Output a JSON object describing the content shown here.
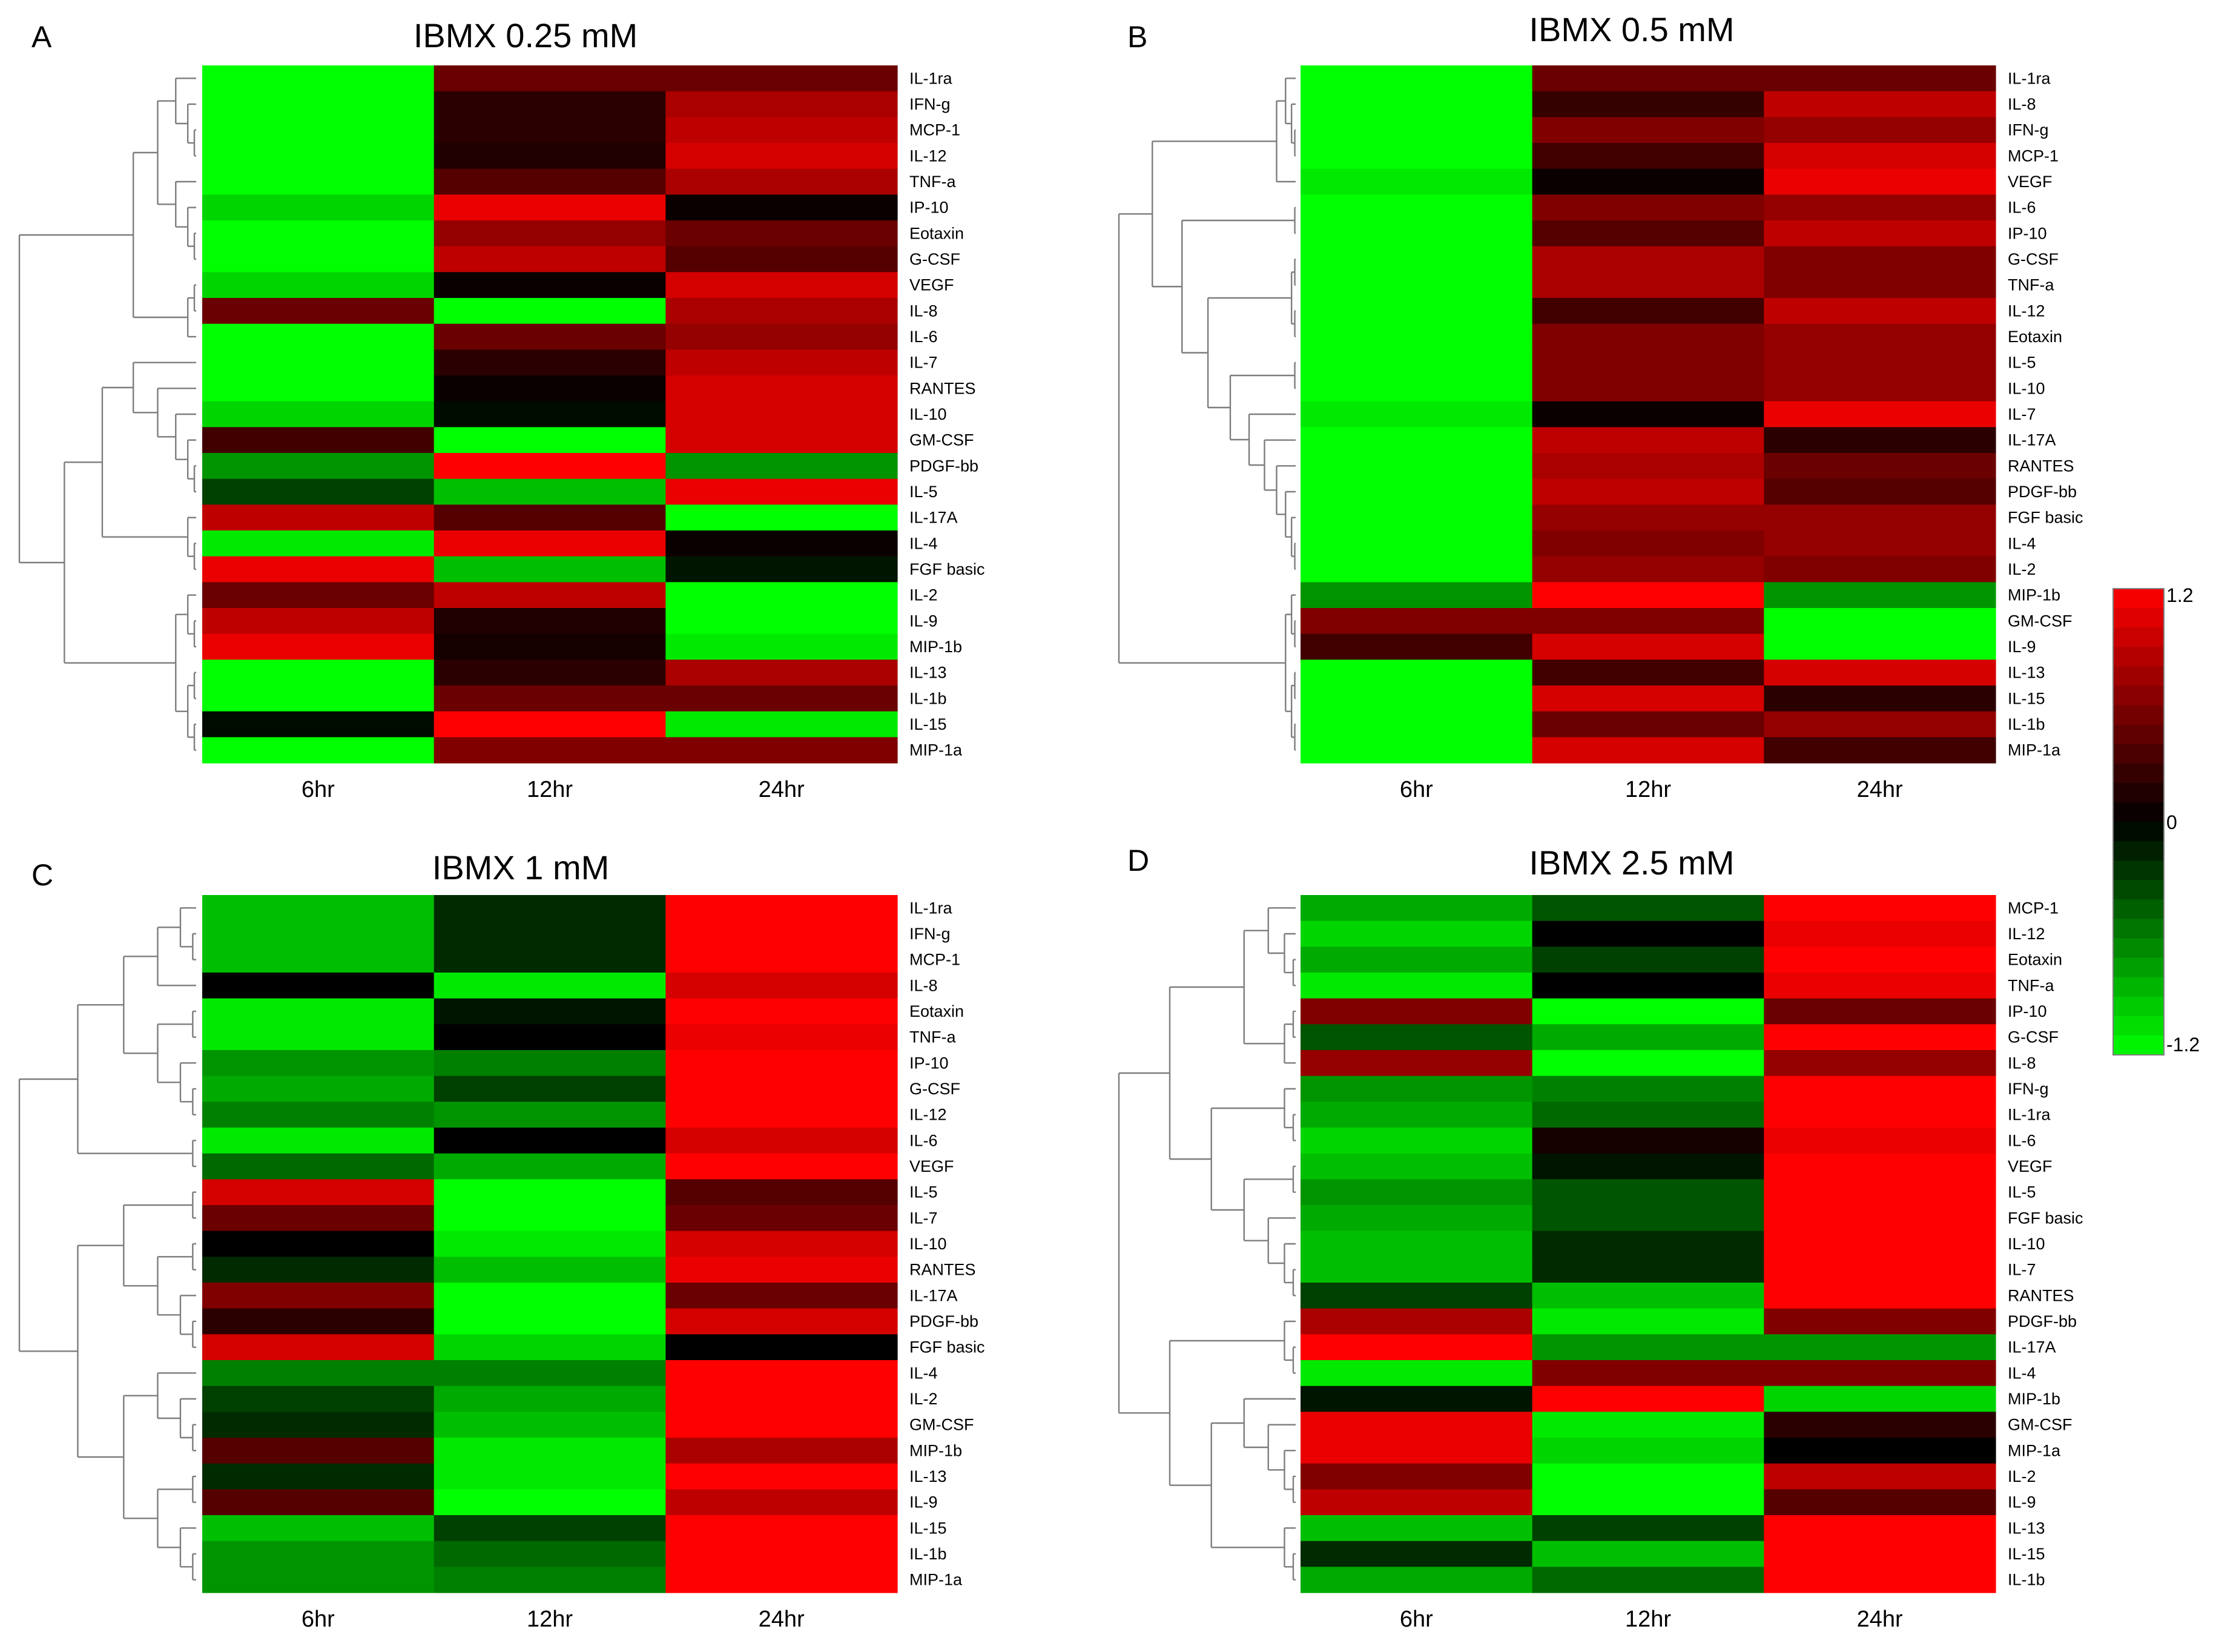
{
  "colors": {
    "high": "#ff0000",
    "mid": "#000000",
    "low": "#00ff00"
  },
  "color_scale": {
    "max_label": "1.2",
    "mid_label": "0",
    "min_label": "-1.2",
    "min": -1.2,
    "max": 1.2,
    "steps": 24
  },
  "chart_data": [
    {
      "type": "heatmap",
      "panel": "A",
      "title": "IBMX 0.25 mM",
      "columns": [
        "6hr",
        "12hr",
        "24hr"
      ],
      "rows": [
        "IL-1ra",
        "IFN-g",
        "MCP-1",
        "IL-12",
        "TNF-a",
        "IP-10",
        "Eotaxin",
        "G-CSF",
        "VEGF",
        "IL-8",
        "IL-6",
        "IL-7",
        "RANTES",
        "IL-10",
        "GM-CSF",
        "PDGF-bb",
        "IL-5",
        "IL-17A",
        "IL-4",
        "FGF basic",
        "IL-2",
        "IL-9",
        "MIP-1b",
        "IL-13",
        "IL-1b",
        "IL-15",
        "MIP-1a"
      ],
      "values": [
        [
          -1.2,
          0.5,
          0.5
        ],
        [
          -1.2,
          0.2,
          0.8
        ],
        [
          -1.2,
          0.2,
          0.9
        ],
        [
          -1.2,
          0.15,
          1.0
        ],
        [
          -1.2,
          0.4,
          0.8
        ],
        [
          -1.0,
          1.1,
          0.05
        ],
        [
          -1.2,
          0.7,
          0.5
        ],
        [
          -1.2,
          0.9,
          0.4
        ],
        [
          -1.0,
          0.05,
          1.0
        ],
        [
          0.5,
          -1.2,
          0.8
        ],
        [
          -1.2,
          0.5,
          0.7
        ],
        [
          -1.2,
          0.2,
          0.9
        ],
        [
          -1.2,
          0.05,
          1.0
        ],
        [
          -1.0,
          -0.05,
          1.0
        ],
        [
          0.3,
          -1.2,
          1.0
        ],
        [
          -0.7,
          1.2,
          -0.7
        ],
        [
          -0.3,
          -0.9,
          1.1
        ],
        [
          0.9,
          0.4,
          -1.2
        ],
        [
          -1.1,
          1.1,
          0.05
        ],
        [
          1.1,
          -0.9,
          -0.1
        ],
        [
          0.5,
          0.9,
          -1.2
        ],
        [
          0.9,
          0.15,
          -1.2
        ],
        [
          1.1,
          0.1,
          -1.1
        ],
        [
          -1.2,
          0.2,
          0.8
        ],
        [
          -1.2,
          0.5,
          0.5
        ],
        [
          -0.05,
          1.2,
          -1.1
        ],
        [
          -1.2,
          0.6,
          0.6
        ]
      ],
      "tree": [
        "(",
        "(",
        "(",
        "(",
        "(",
        "IL-1ra",
        ")",
        "(",
        "IFN-g",
        "(",
        "MCP-1",
        "IL-12",
        ")",
        ")",
        ")",
        "(",
        "TNF-a",
        "(",
        "IP-10",
        "(",
        "Eotaxin",
        "G-CSF",
        ")",
        ")",
        ")",
        ")",
        "(",
        "(",
        "VEGF",
        "IL-8",
        ")",
        "IL-6",
        ")",
        ")",
        "(",
        "(",
        "(",
        "IL-7",
        "(",
        "RANTES",
        "(",
        "IL-10",
        "(",
        "GM-CSF",
        "(",
        "PDGF-bb",
        "IL-5",
        ")",
        ")",
        ")",
        ")",
        ")",
        "(",
        "IL-17A",
        "(",
        "IL-4",
        "FGF basic",
        ")",
        ")",
        ")",
        "(",
        "(",
        "IL-2",
        "(",
        "IL-9",
        "MIP-1b",
        ")",
        ")",
        "(",
        "(",
        "IL-13",
        "IL-1b",
        ")",
        "(",
        "IL-15",
        "MIP-1a",
        ")",
        ")",
        ")",
        ")",
        ")"
      ]
    },
    {
      "type": "heatmap",
      "panel": "B",
      "title": "IBMX 0.5 mM",
      "columns": [
        "6hr",
        "12hr",
        "24hr"
      ],
      "rows": [
        "IL-1ra",
        "IL-8",
        "IFN-g",
        "MCP-1",
        "VEGF",
        "IL-6",
        "IP-10",
        "G-CSF",
        "TNF-a",
        "IL-12",
        "Eotaxin",
        "IL-5",
        "IL-10",
        "IL-7",
        "IL-17A",
        "RANTES",
        "PDGF-bb",
        "FGF basic",
        "IL-4",
        "IL-2",
        "MIP-1b",
        "GM-CSF",
        "IL-9",
        "IL-13",
        "IL-15",
        "IL-1b",
        "MIP-1a"
      ],
      "values": [
        [
          -1.2,
          0.5,
          0.5
        ],
        [
          -1.2,
          0.25,
          0.9
        ],
        [
          -1.2,
          0.6,
          0.7
        ],
        [
          -1.2,
          0.3,
          1.0
        ],
        [
          -1.1,
          0.05,
          1.1
        ],
        [
          -1.2,
          0.6,
          0.7
        ],
        [
          -1.2,
          0.4,
          0.9
        ],
        [
          -1.2,
          0.8,
          0.6
        ],
        [
          -1.2,
          0.8,
          0.6
        ],
        [
          -1.2,
          0.3,
          0.9
        ],
        [
          -1.2,
          0.6,
          0.7
        ],
        [
          -1.2,
          0.6,
          0.7
        ],
        [
          -1.2,
          0.6,
          0.7
        ],
        [
          -1.1,
          0.05,
          1.1
        ],
        [
          -1.2,
          0.9,
          0.2
        ],
        [
          -1.2,
          0.8,
          0.5
        ],
        [
          -1.2,
          0.9,
          0.4
        ],
        [
          -1.2,
          0.7,
          0.7
        ],
        [
          -1.2,
          0.6,
          0.7
        ],
        [
          -1.2,
          0.7,
          0.6
        ],
        [
          -0.7,
          1.2,
          -0.7
        ],
        [
          0.6,
          0.6,
          -1.2
        ],
        [
          0.3,
          1.0,
          -1.2
        ],
        [
          -1.2,
          0.3,
          1.0
        ],
        [
          -1.2,
          1.0,
          0.2
        ],
        [
          -1.2,
          0.5,
          0.7
        ],
        [
          -1.2,
          1.0,
          0.3
        ]
      ],
      "tree": [
        "(",
        "(",
        "(",
        "(",
        "IL-1ra",
        "(",
        "IL-8",
        "(",
        "IFN-g",
        "MCP-1",
        ")",
        ")",
        ")",
        "VEGF",
        ")",
        "(",
        "(",
        "IL-6",
        "IP-10",
        ")",
        "(",
        "(",
        "(",
        "G-CSF",
        "TNF-a",
        ")",
        "(",
        "IL-12",
        "Eotaxin",
        ")",
        ")",
        "(",
        "(",
        "IL-5",
        "IL-10",
        ")",
        "(",
        "IL-7",
        "(",
        "IL-17A",
        "(",
        "RANTES",
        "(",
        "PDGF-bb",
        "(",
        "FGF basic",
        "(",
        "IL-4",
        "IL-2",
        ")",
        ")",
        ")",
        ")",
        ")",
        ")",
        ")",
        ")",
        ")",
        ")",
        "(",
        "(",
        "MIP-1b",
        "(",
        "GM-CSF",
        "IL-9",
        ")",
        ")",
        "(",
        "(",
        "IL-13",
        "IL-15",
        ")",
        "(",
        "IL-1b",
        "MIP-1a",
        ")",
        ")",
        ")",
        ")"
      ]
    },
    {
      "type": "heatmap",
      "panel": "C",
      "title": "IBMX 1 mM",
      "columns": [
        "6hr",
        "12hr",
        "24hr"
      ],
      "rows": [
        "IL-1ra",
        "IFN-g",
        "MCP-1",
        "IL-8",
        "Eotaxin",
        "TNF-a",
        "IP-10",
        "G-CSF",
        "IL-12",
        "IL-6",
        "VEGF",
        "IL-5",
        "IL-7",
        "IL-10",
        "RANTES",
        "IL-17A",
        "PDGF-bb",
        "FGF basic",
        "IL-4",
        "IL-2",
        "GM-CSF",
        "MIP-1b",
        "IL-13",
        "IL-9",
        "IL-15",
        "IL-1b",
        "MIP-1a"
      ],
      "values": [
        [
          -0.9,
          -0.2,
          1.2
        ],
        [
          -0.9,
          -0.2,
          1.2
        ],
        [
          -0.9,
          -0.2,
          1.2
        ],
        [
          0.0,
          -1.1,
          1.0
        ],
        [
          -1.1,
          -0.1,
          1.2
        ],
        [
          -1.1,
          0.0,
          1.1
        ],
        [
          -0.7,
          -0.6,
          1.2
        ],
        [
          -0.8,
          -0.3,
          1.2
        ],
        [
          -0.6,
          -0.7,
          1.2
        ],
        [
          -1.1,
          0.0,
          1.0
        ],
        [
          -0.5,
          -0.8,
          1.2
        ],
        [
          1.0,
          -1.2,
          0.4
        ],
        [
          0.5,
          -1.2,
          0.5
        ],
        [
          0.0,
          -1.1,
          1.0
        ],
        [
          -0.2,
          -0.9,
          1.1
        ],
        [
          0.6,
          -1.2,
          0.5
        ],
        [
          0.2,
          -1.2,
          1.0
        ],
        [
          1.0,
          -1.0,
          0.0
        ],
        [
          -0.6,
          -0.6,
          1.2
        ],
        [
          -0.3,
          -0.8,
          1.2
        ],
        [
          -0.2,
          -0.9,
          1.2
        ],
        [
          0.4,
          -1.1,
          0.8
        ],
        [
          -0.2,
          -1.1,
          1.2
        ],
        [
          0.4,
          -1.2,
          0.9
        ],
        [
          -0.9,
          -0.3,
          1.2
        ],
        [
          -0.7,
          -0.5,
          1.2
        ],
        [
          -0.7,
          -0.6,
          1.2
        ]
      ],
      "tree": [
        "(",
        "(",
        "(",
        "(",
        "(",
        "IL-1ra",
        "(",
        "IFN-g",
        "MCP-1",
        ")",
        ")",
        "IL-8",
        ")",
        "(",
        "(",
        "Eotaxin",
        "TNF-a",
        ")",
        "(",
        "IP-10",
        "(",
        "G-CSF",
        "IL-12",
        ")",
        ")",
        ")",
        ")",
        "(",
        "IL-6",
        "VEGF",
        ")",
        ")",
        "(",
        "(",
        "(",
        "IL-5",
        "IL-7",
        ")",
        "(",
        "(",
        "IL-10",
        "RANTES",
        ")",
        "(",
        "IL-17A",
        "(",
        "PDGF-bb",
        "FGF basic",
        ")",
        ")",
        ")",
        ")",
        "(",
        "(",
        "IL-4",
        "(",
        "IL-2",
        "(",
        "GM-CSF",
        "MIP-1b",
        ")",
        ")",
        ")",
        "(",
        "(",
        "IL-13",
        "IL-9",
        ")",
        "(",
        "IL-15",
        "(",
        "IL-1b",
        "MIP-1a",
        ")",
        ")",
        ")",
        ")",
        ")",
        ")"
      ]
    },
    {
      "type": "heatmap",
      "panel": "D",
      "title": "IBMX 2.5 mM",
      "columns": [
        "6hr",
        "12hr",
        "24hr"
      ],
      "rows": [
        "MCP-1",
        "IL-12",
        "Eotaxin",
        "TNF-a",
        "IP-10",
        "G-CSF",
        "IL-8",
        "IFN-g",
        "IL-1ra",
        "IL-6",
        "VEGF",
        "IL-5",
        "FGF basic",
        "IL-10",
        "IL-7",
        "RANTES",
        "PDGF-bb",
        "IL-17A",
        "IL-4",
        "MIP-1b",
        "GM-CSF",
        "MIP-1a",
        "IL-2",
        "IL-9",
        "IL-13",
        "IL-15",
        "IL-1b"
      ],
      "values": [
        [
          -0.8,
          -0.4,
          1.2
        ],
        [
          -1.0,
          0.0,
          1.1
        ],
        [
          -0.8,
          -0.3,
          1.2
        ],
        [
          -1.1,
          0.0,
          1.1
        ],
        [
          0.6,
          -1.2,
          0.5
        ],
        [
          -0.4,
          -0.8,
          1.2
        ],
        [
          0.7,
          -1.2,
          0.7
        ],
        [
          -0.7,
          -0.6,
          1.2
        ],
        [
          -0.8,
          -0.5,
          1.2
        ],
        [
          -1.0,
          0.1,
          1.1
        ],
        [
          -0.9,
          -0.1,
          1.2
        ],
        [
          -0.7,
          -0.4,
          1.2
        ],
        [
          -0.8,
          -0.4,
          1.2
        ],
        [
          -0.9,
          -0.2,
          1.2
        ],
        [
          -0.9,
          -0.2,
          1.2
        ],
        [
          -0.3,
          -0.9,
          1.2
        ],
        [
          0.8,
          -1.1,
          0.6
        ],
        [
          1.2,
          -0.7,
          -0.7
        ],
        [
          -1.1,
          0.6,
          0.6
        ],
        [
          -0.1,
          1.2,
          -1.0
        ],
        [
          1.1,
          -1.1,
          0.2
        ],
        [
          1.1,
          -1.0,
          0.0
        ],
        [
          0.6,
          -1.2,
          0.9
        ],
        [
          0.9,
          -1.2,
          0.4
        ],
        [
          -0.9,
          -0.3,
          1.2
        ],
        [
          -0.2,
          -0.9,
          1.2
        ],
        [
          -0.8,
          -0.5,
          1.2
        ]
      ],
      "tree": [
        "(",
        "(",
        "(",
        "(",
        "MCP-1",
        "(",
        "IL-12",
        "(",
        "Eotaxin",
        "TNF-a",
        ")",
        ")",
        ")",
        "(",
        "(",
        "IP-10",
        "G-CSF",
        ")",
        "IL-8",
        ")",
        ")",
        "(",
        "(",
        "IFN-g",
        "(",
        "IL-1ra",
        "IL-6",
        ")",
        ")",
        "(",
        "(",
        "VEGF",
        "IL-5",
        ")",
        "(",
        "FGF basic",
        "(",
        "IL-10",
        "(",
        "IL-7",
        "RANTES",
        ")",
        ")",
        ")",
        ")",
        ")",
        ")",
        "(",
        "(",
        "PDGF-bb",
        "(",
        "IL-17A",
        "IL-4",
        ")",
        ")",
        "(",
        "(",
        "MIP-1b",
        "(",
        "GM-CSF",
        "(",
        "MIP-1a",
        "(",
        "IL-2",
        "IL-9",
        ")",
        ")",
        ")",
        ")",
        "(",
        "IL-13",
        "(",
        "IL-15",
        "IL-1b",
        ")",
        ")",
        ")",
        ")",
        ")"
      ]
    }
  ]
}
